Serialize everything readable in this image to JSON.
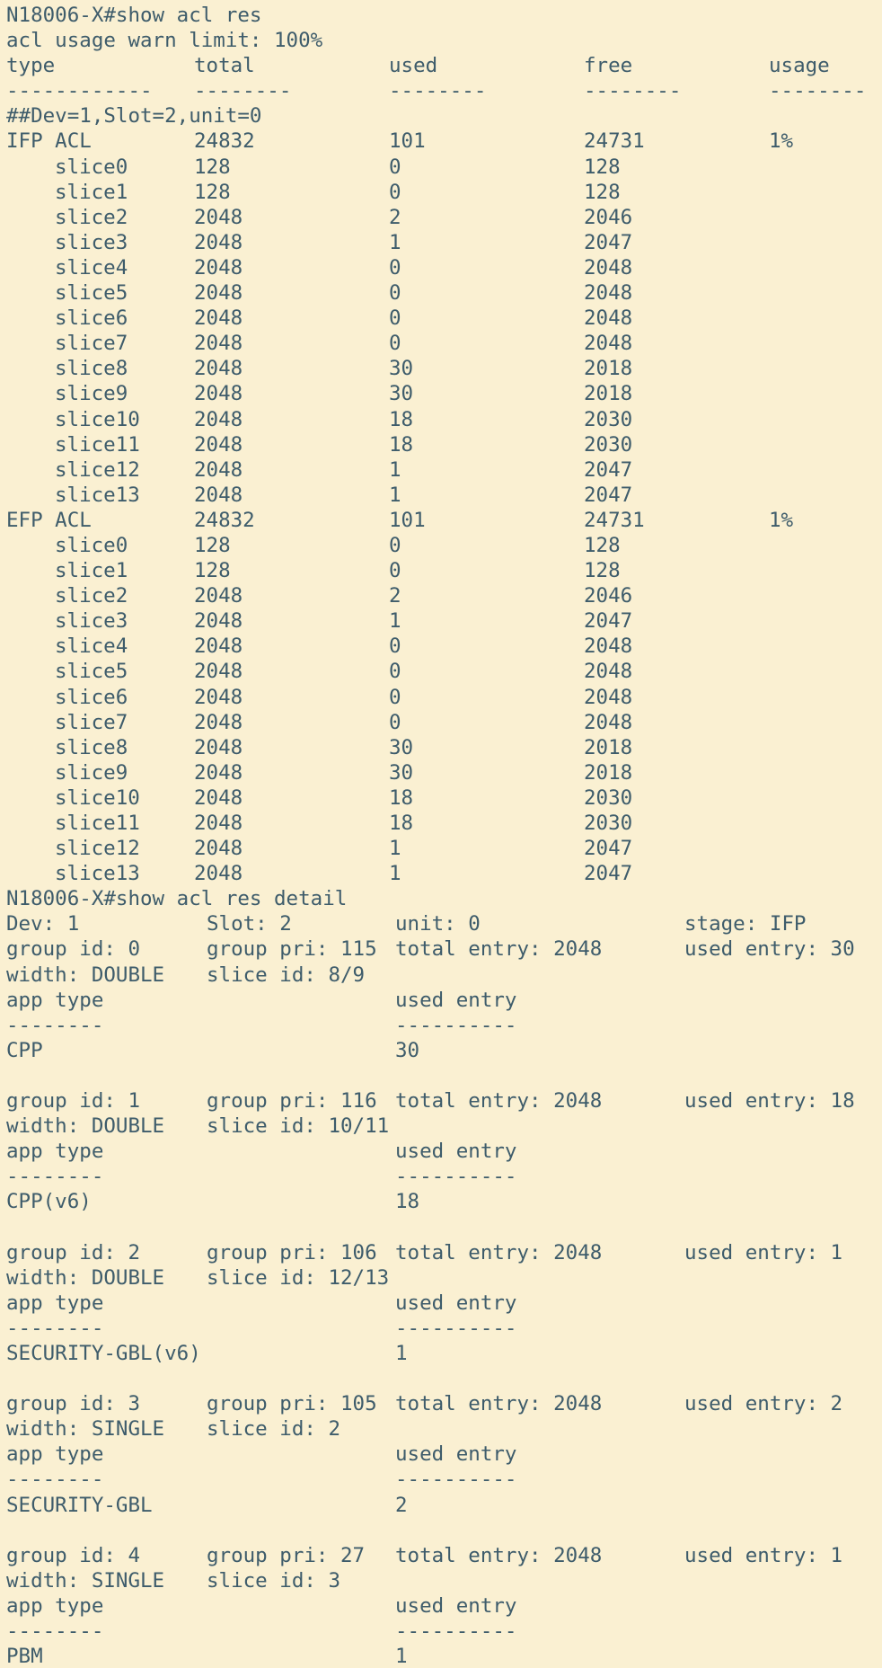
{
  "terminal": {
    "colors": {
      "background": "#faf0d2",
      "text": "#3e5c6b"
    },
    "command_show": "N18006-X#show acl res",
    "warn_line": "acl usage warn limit: 100%",
    "summary": {
      "headers": [
        "type",
        "total",
        "used",
        "free",
        "usage"
      ],
      "dashes": [
        "------------",
        "--------",
        "--------",
        "--------",
        "--------"
      ],
      "section": "##Dev=1,Slot=2,unit=0",
      "rows": [
        {
          "type": "IFP ACL",
          "indent": false,
          "total": "24832",
          "used": "101",
          "free": "24731",
          "usage": "1%"
        },
        {
          "type": "slice0",
          "indent": true,
          "total": "128",
          "used": "0",
          "free": "128",
          "usage": ""
        },
        {
          "type": "slice1",
          "indent": true,
          "total": "128",
          "used": "0",
          "free": "128",
          "usage": ""
        },
        {
          "type": "slice2",
          "indent": true,
          "total": "2048",
          "used": "2",
          "free": "2046",
          "usage": ""
        },
        {
          "type": "slice3",
          "indent": true,
          "total": "2048",
          "used": "1",
          "free": "2047",
          "usage": ""
        },
        {
          "type": "slice4",
          "indent": true,
          "total": "2048",
          "used": "0",
          "free": "2048",
          "usage": ""
        },
        {
          "type": "slice5",
          "indent": true,
          "total": "2048",
          "used": "0",
          "free": "2048",
          "usage": ""
        },
        {
          "type": "slice6",
          "indent": true,
          "total": "2048",
          "used": "0",
          "free": "2048",
          "usage": ""
        },
        {
          "type": "slice7",
          "indent": true,
          "total": "2048",
          "used": "0",
          "free": "2048",
          "usage": ""
        },
        {
          "type": "slice8",
          "indent": true,
          "total": "2048",
          "used": "30",
          "free": "2018",
          "usage": ""
        },
        {
          "type": "slice9",
          "indent": true,
          "total": "2048",
          "used": "30",
          "free": "2018",
          "usage": ""
        },
        {
          "type": "slice10",
          "indent": true,
          "total": "2048",
          "used": "18",
          "free": "2030",
          "usage": ""
        },
        {
          "type": "slice11",
          "indent": true,
          "total": "2048",
          "used": "18",
          "free": "2030",
          "usage": ""
        },
        {
          "type": "slice12",
          "indent": true,
          "total": "2048",
          "used": "1",
          "free": "2047",
          "usage": ""
        },
        {
          "type": "slice13",
          "indent": true,
          "total": "2048",
          "used": "1",
          "free": "2047",
          "usage": ""
        },
        {
          "type": "EFP ACL",
          "indent": false,
          "total": "24832",
          "used": "101",
          "free": "24731",
          "usage": "1%"
        },
        {
          "type": "slice0",
          "indent": true,
          "total": "128",
          "used": "0",
          "free": "128",
          "usage": ""
        },
        {
          "type": "slice1",
          "indent": true,
          "total": "128",
          "used": "0",
          "free": "128",
          "usage": ""
        },
        {
          "type": "slice2",
          "indent": true,
          "total": "2048",
          "used": "2",
          "free": "2046",
          "usage": ""
        },
        {
          "type": "slice3",
          "indent": true,
          "total": "2048",
          "used": "1",
          "free": "2047",
          "usage": ""
        },
        {
          "type": "slice4",
          "indent": true,
          "total": "2048",
          "used": "0",
          "free": "2048",
          "usage": ""
        },
        {
          "type": "slice5",
          "indent": true,
          "total": "2048",
          "used": "0",
          "free": "2048",
          "usage": ""
        },
        {
          "type": "slice6",
          "indent": true,
          "total": "2048",
          "used": "0",
          "free": "2048",
          "usage": ""
        },
        {
          "type": "slice7",
          "indent": true,
          "total": "2048",
          "used": "0",
          "free": "2048",
          "usage": ""
        },
        {
          "type": "slice8",
          "indent": true,
          "total": "2048",
          "used": "30",
          "free": "2018",
          "usage": ""
        },
        {
          "type": "slice9",
          "indent": true,
          "total": "2048",
          "used": "30",
          "free": "2018",
          "usage": ""
        },
        {
          "type": "slice10",
          "indent": true,
          "total": "2048",
          "used": "18",
          "free": "2030",
          "usage": ""
        },
        {
          "type": "slice11",
          "indent": true,
          "total": "2048",
          "used": "18",
          "free": "2030",
          "usage": ""
        },
        {
          "type": "slice12",
          "indent": true,
          "total": "2048",
          "used": "1",
          "free": "2047",
          "usage": ""
        },
        {
          "type": "slice13",
          "indent": true,
          "total": "2048",
          "used": "1",
          "free": "2047",
          "usage": ""
        }
      ]
    },
    "command_detail": "N18006-X#show acl res detail",
    "detail": {
      "device": {
        "dev": "Dev: 1",
        "slot": "Slot: 2",
        "unit": "unit: 0",
        "stage": "stage: IFP"
      },
      "app_headers": [
        "app type",
        "used entry"
      ],
      "app_dashes": [
        "--------",
        "----------"
      ],
      "groups": [
        {
          "group_id": "group id: 0",
          "group_pri": "group pri: 115",
          "total_entry": "total entry: 2048",
          "used_entry": "used entry: 30",
          "width": "width: DOUBLE",
          "slice_id": "slice id: 8/9",
          "apps": [
            {
              "name": "CPP",
              "used": "30"
            }
          ]
        },
        {
          "group_id": "group id: 1",
          "group_pri": "group pri: 116",
          "total_entry": "total entry: 2048",
          "used_entry": "used entry: 18",
          "width": "width: DOUBLE",
          "slice_id": "slice id: 10/11",
          "apps": [
            {
              "name": "CPP(v6)",
              "used": "18"
            }
          ]
        },
        {
          "group_id": "group id: 2",
          "group_pri": "group pri: 106",
          "total_entry": "total entry: 2048",
          "used_entry": "used entry: 1",
          "width": "width: DOUBLE",
          "slice_id": "slice id: 12/13",
          "apps": [
            {
              "name": "SECURITY-GBL(v6)",
              "used": "1"
            }
          ]
        },
        {
          "group_id": "group id: 3",
          "group_pri": "group pri: 105",
          "total_entry": "total entry: 2048",
          "used_entry": "used entry: 2",
          "width": "width: SINGLE",
          "slice_id": "slice id: 2",
          "apps": [
            {
              "name": "SECURITY-GBL",
              "used": "2"
            }
          ]
        },
        {
          "group_id": "group id: 4",
          "group_pri": "group pri: 27",
          "total_entry": "total entry: 2048",
          "used_entry": "used entry: 1",
          "width": "width: SINGLE",
          "slice_id": "slice id: 3",
          "apps": [
            {
              "name": "PBM",
              "used": "1"
            }
          ]
        }
      ]
    }
  }
}
